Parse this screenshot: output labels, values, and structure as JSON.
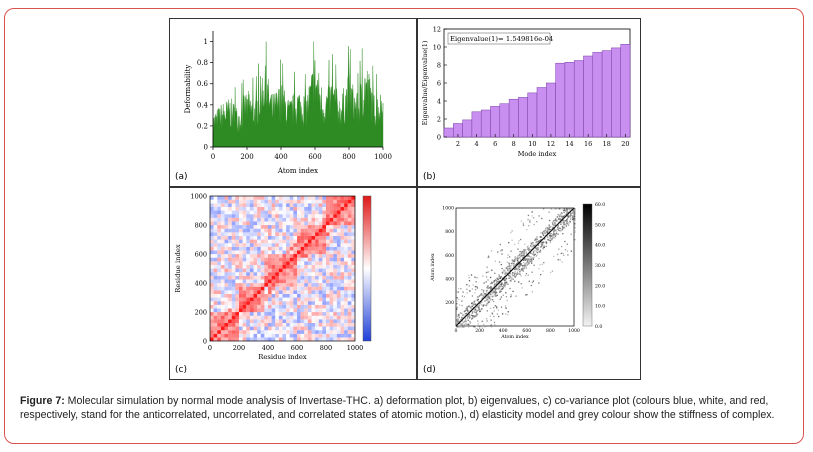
{
  "caption": {
    "label": "Figure 7:",
    "text": " Molecular simulation by normal mode analysis of Invertase-THC. a) deformation plot, b) eigenvalues, c) co-variance plot (colours blue, white, and red, respectively, stand for the anticorrelated, uncorrelated, and correlated states of atomic motion.), d) elasticity model and grey colour show the stiffness of complex."
  },
  "panels": {
    "a": "(a)",
    "b": "(b)",
    "c": "(c)",
    "d": "(d)"
  },
  "colors": {
    "border": "#d9534f",
    "deformation": "#2e8b23",
    "eigen_bar": "#c98ff0",
    "eigen_edge": "#7a3ea8",
    "anticorrelated": "#1f3fd8",
    "correlated": "#e01818",
    "stiffness": "#7f7f7f"
  },
  "chart_data": [
    {
      "type": "area",
      "panel": "a",
      "xlabel": "Atom index",
      "ylabel": "Deformability",
      "xlim": [
        0,
        1000
      ],
      "ylim": [
        0,
        1.1
      ],
      "xticks": [
        "0",
        "200",
        "400",
        "600",
        "800",
        "1000"
      ],
      "yticks": [
        "0",
        "0.2",
        "0.4",
        "0.6",
        "0.8",
        "1"
      ],
      "x": [
        0,
        50,
        100,
        150,
        200,
        250,
        300,
        350,
        400,
        450,
        500,
        550,
        600,
        650,
        700,
        750,
        800,
        850,
        900,
        950,
        1000
      ],
      "values": [
        0.32,
        0.42,
        0.48,
        0.38,
        0.55,
        0.46,
        0.82,
        0.5,
        0.62,
        0.45,
        0.58,
        0.5,
        0.9,
        0.52,
        0.66,
        0.48,
        0.72,
        0.5,
        0.85,
        0.5,
        0.55
      ]
    },
    {
      "type": "bar",
      "panel": "b",
      "xlabel": "Mode index",
      "ylabel": "Eigenvalue/Eigenvalue(1)",
      "annotation": "Eigenvalue(1)= 1.549816e-04",
      "xlim": [
        1,
        20
      ],
      "ylim": [
        0,
        12
      ],
      "xticks": [
        "2",
        "4",
        "6",
        "8",
        "10",
        "12",
        "14",
        "16",
        "18",
        "20"
      ],
      "yticks": [
        "0",
        "2",
        "4",
        "6",
        "8",
        "10",
        "12"
      ],
      "categories": [
        1,
        2,
        3,
        4,
        5,
        6,
        7,
        8,
        9,
        10,
        11,
        12,
        13,
        14,
        15,
        16,
        17,
        18,
        19,
        20
      ],
      "values": [
        1.0,
        1.5,
        1.9,
        2.8,
        3.0,
        3.4,
        3.7,
        4.2,
        4.4,
        4.9,
        5.5,
        6.0,
        8.2,
        8.3,
        8.5,
        9.0,
        9.4,
        9.6,
        9.9,
        10.3
      ]
    },
    {
      "type": "heatmap",
      "panel": "c",
      "xlabel": "Residue index",
      "ylabel": "Residue index",
      "xlim": [
        0,
        1000
      ],
      "ylim": [
        0,
        1000
      ],
      "xticks": [
        "0",
        "200",
        "400",
        "600",
        "800",
        "1000"
      ],
      "yticks": [
        "0",
        "200",
        "400",
        "600",
        "800",
        "1000"
      ],
      "colorscale": [
        "anticorrelated",
        "uncorrelated",
        "correlated"
      ]
    },
    {
      "type": "heatmap",
      "panel": "d",
      "xlabel": "Atom index",
      "ylabel": "Atom index",
      "xlim": [
        0,
        1000
      ],
      "ylim": [
        0,
        1000
      ],
      "xticks": [
        "0",
        "200",
        "400",
        "600",
        "800",
        "1000"
      ],
      "yticks": [
        "200",
        "400",
        "600",
        "800",
        "1000"
      ],
      "colorbar": [
        "0.0",
        "10.0",
        "20.0",
        "30.0",
        "40.0",
        "50.0",
        "60.0"
      ]
    }
  ]
}
